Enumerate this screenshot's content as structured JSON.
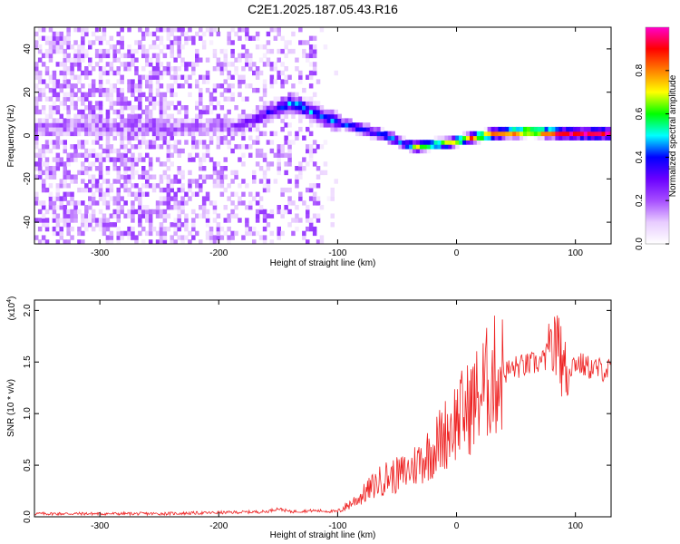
{
  "title": "C2E1.2025.187.05.43.R16",
  "chart_data": [
    {
      "type": "heatmap",
      "xlabel": "Height of straight line (km)",
      "ylabel": "Frequency (Hz)",
      "xlim": [
        -355,
        130
      ],
      "ylim": [
        -50,
        50
      ],
      "xticks": [
        -300,
        -200,
        -100,
        0,
        100
      ],
      "yticks": [
        -40,
        -20,
        0,
        20,
        40
      ],
      "colorbar": {
        "label": "Normalized spectral amplitude",
        "range": [
          0,
          1
        ],
        "ticks": [
          0.0,
          0.2,
          0.4,
          0.6,
          0.8
        ],
        "colormap": [
          "#ffffff",
          "#e8ccff",
          "#a64dff",
          "#6a00ff",
          "#0000ff",
          "#00ffff",
          "#00ff00",
          "#ffff00",
          "#ff8000",
          "#ff0000",
          "#ff00cc"
        ]
      },
      "ridge": {
        "x": [
          -190,
          -170,
          -150,
          -140,
          -130,
          -120,
          -100,
          -80,
          -60,
          -45,
          -35,
          -20,
          -5,
          10,
          30,
          60,
          90,
          130
        ],
        "freq": [
          3,
          7,
          12,
          14,
          12,
          9,
          5,
          2,
          -1,
          -5,
          -6,
          -5,
          -4,
          -2,
          0,
          1,
          0,
          0
        ],
        "amplitude": [
          0.2,
          0.3,
          0.45,
          0.5,
          0.5,
          0.45,
          0.45,
          0.45,
          0.5,
          0.55,
          0.7,
          0.75,
          0.8,
          0.85,
          0.9,
          0.95,
          0.95,
          0.95
        ]
      }
    },
    {
      "type": "line",
      "xlabel": "Height of straight line (km)",
      "ylabel": "SNR (10 * v/v)",
      "y_multiplier": "(x10",
      "y_multiplier_exp": "4",
      "xlim": [
        -355,
        130
      ],
      "ylim": [
        0,
        2.1
      ],
      "xticks": [
        -300,
        -200,
        -100,
        0,
        100
      ],
      "yticks": [
        0.0,
        0.5,
        1.0,
        1.5,
        2.0
      ],
      "ytick_labels": [
        "0.0",
        "0.5",
        "1.0",
        "1.5",
        "2.0"
      ],
      "color": "#ee2222",
      "series": [
        {
          "x": [
            -355,
            -300,
            -250,
            -200,
            -160,
            -150,
            -140,
            -120,
            -100,
            -90,
            -80,
            -70,
            -60,
            -50,
            -40,
            -30,
            -20,
            -10,
            0,
            10,
            20,
            30,
            40,
            50,
            60,
            70,
            80,
            85,
            90,
            100,
            110,
            120,
            130
          ],
          "values": [
            0.03,
            0.03,
            0.03,
            0.04,
            0.05,
            0.08,
            0.05,
            0.06,
            0.05,
            0.12,
            0.2,
            0.3,
            0.38,
            0.4,
            0.45,
            0.55,
            0.65,
            0.8,
            0.95,
            1.05,
            1.2,
            1.35,
            1.4,
            1.45,
            1.47,
            1.5,
            1.55,
            1.7,
            1.4,
            1.5,
            1.45,
            1.43,
            1.42
          ]
        }
      ]
    }
  ]
}
